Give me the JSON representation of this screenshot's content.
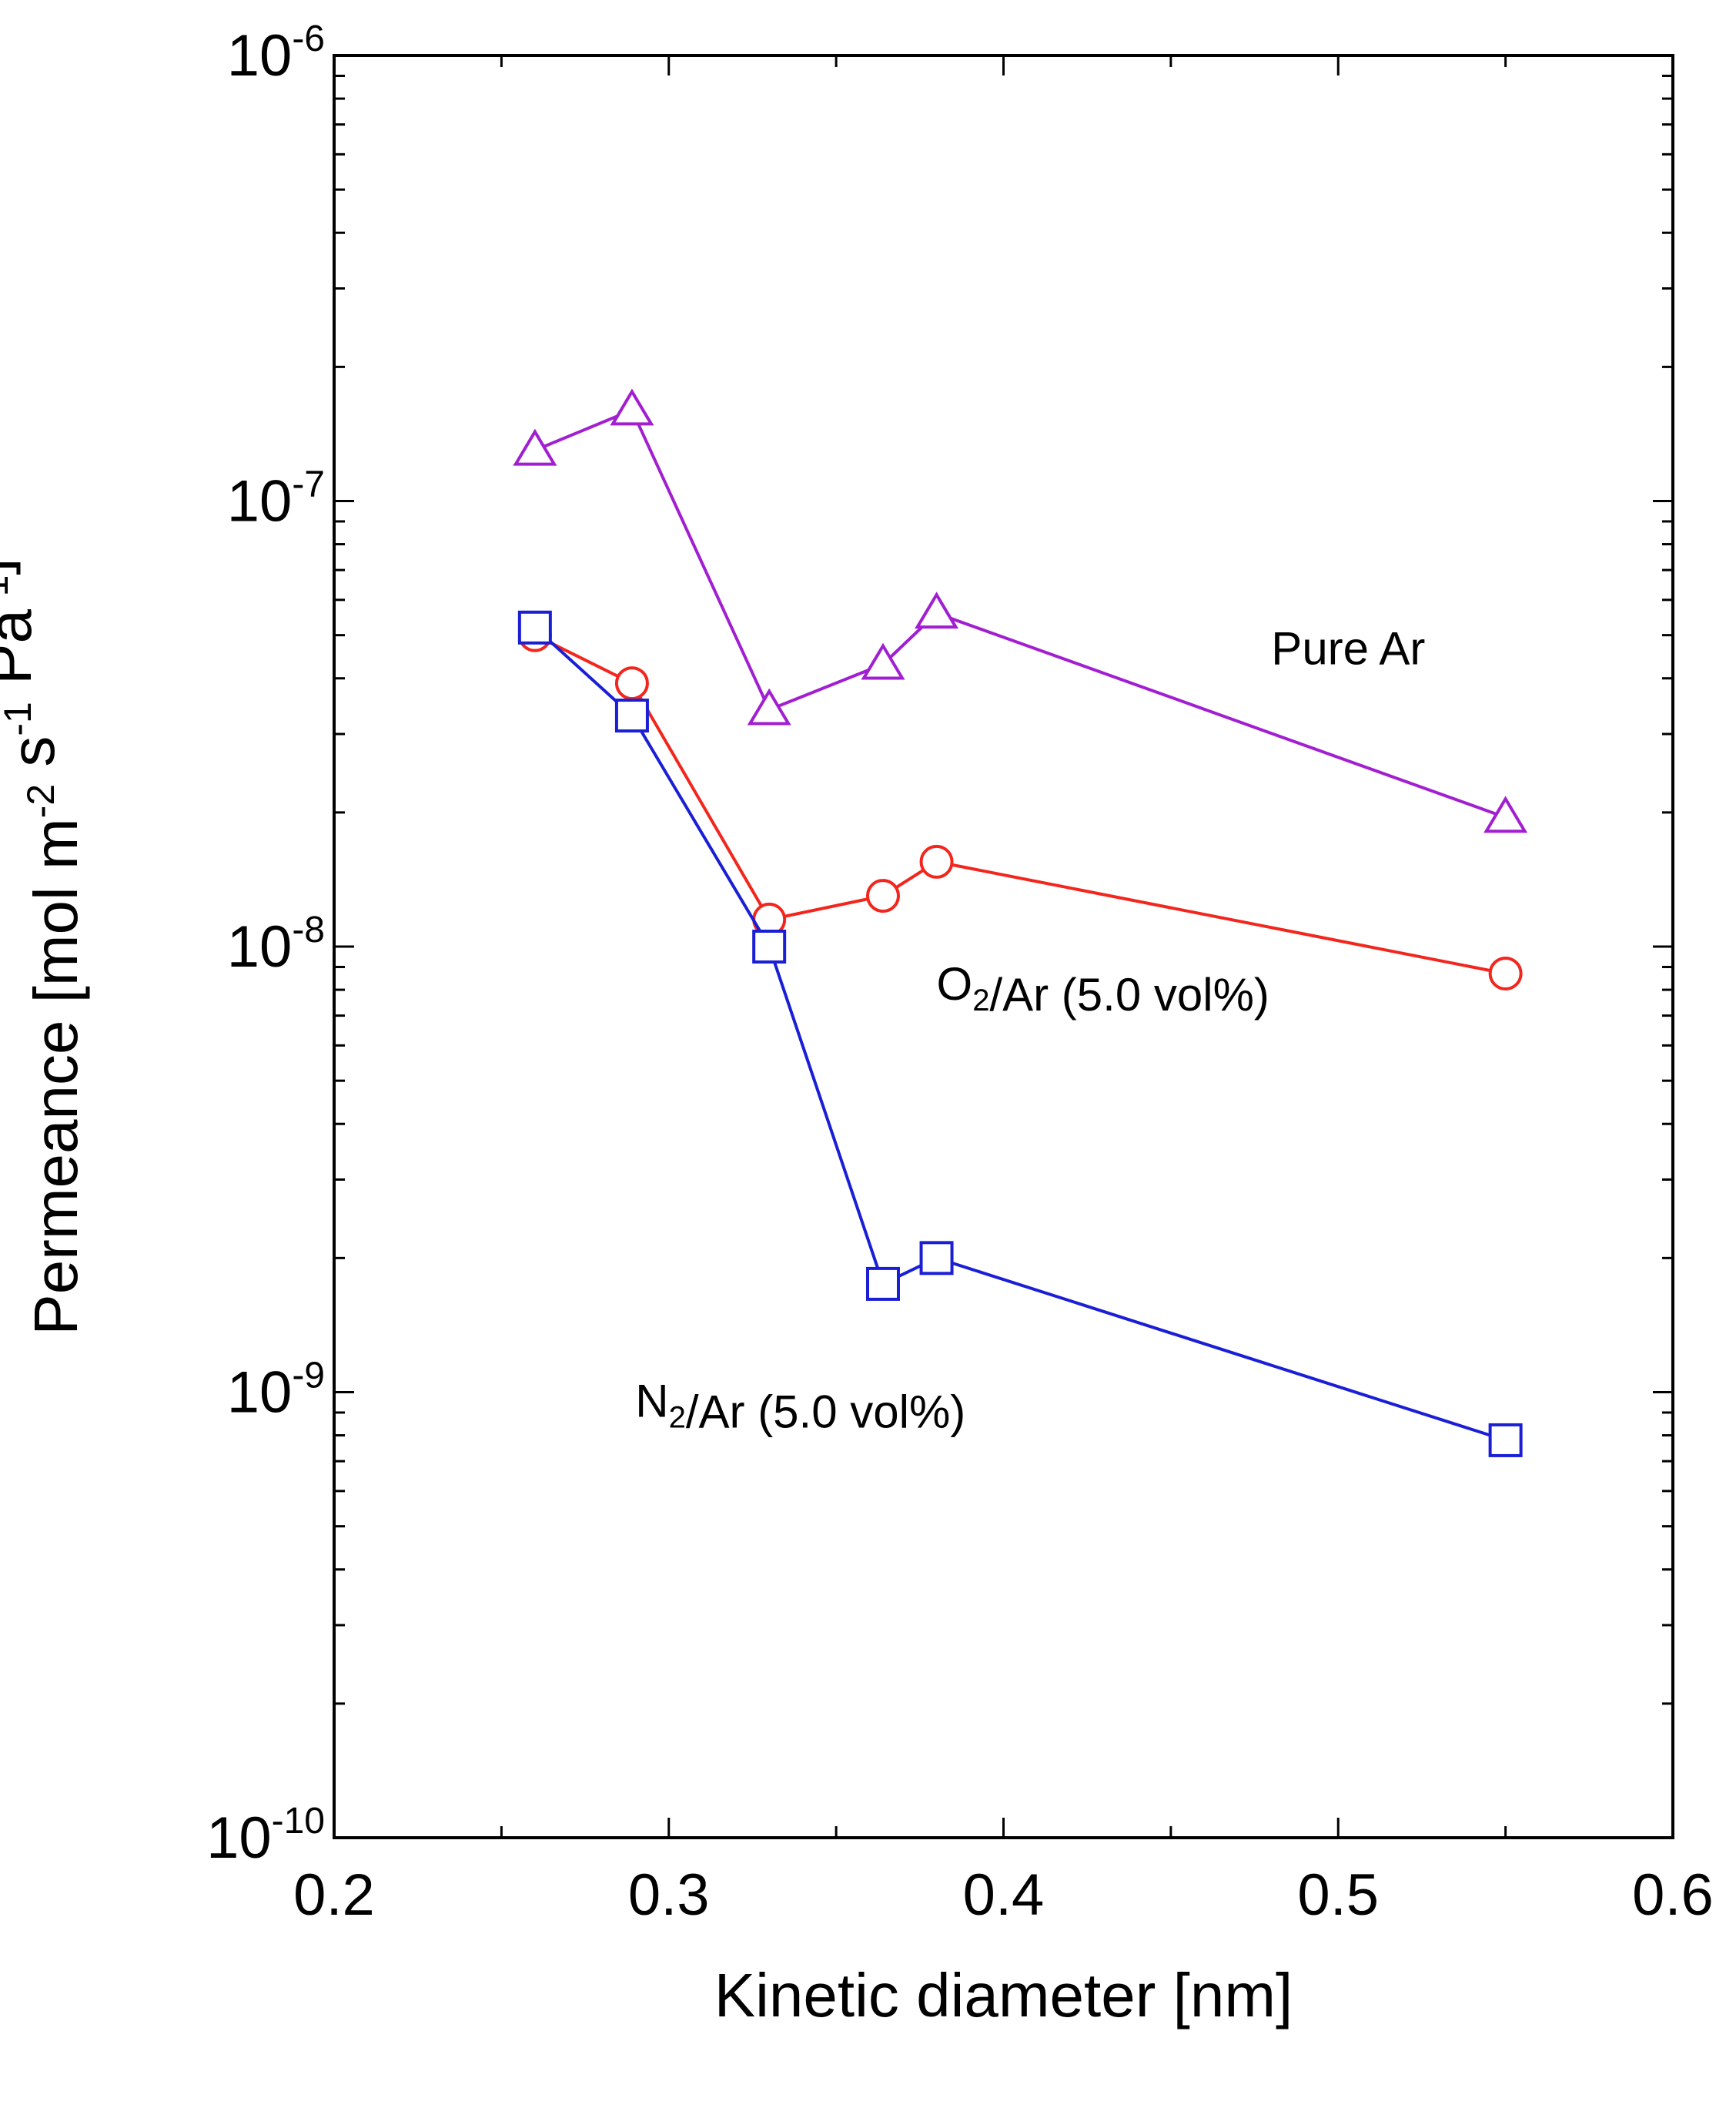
{
  "chart_data": {
    "type": "scatter",
    "title": "",
    "xlabel": "Kinetic diameter [nm]",
    "ylabel": {
      "parts": [
        {
          "text": "Permeance [mol m",
          "sup": "-2"
        },
        {
          "text": " s",
          "sup": "-1"
        },
        {
          "text": " Pa",
          "sup": "-1"
        },
        {
          "text": "]",
          "sup": ""
        }
      ]
    },
    "xlim": [
      0.2,
      0.6
    ],
    "ylim": [
      1e-10,
      1e-06
    ],
    "yscale": "log",
    "x_ticks": [
      "0.2",
      "0.3",
      "0.4",
      "0.5",
      "0.6"
    ],
    "y_ticks": [
      {
        "base": "10",
        "exp": "-6",
        "value": 1e-06
      },
      {
        "base": "10",
        "exp": "-7",
        "value": 1e-07
      },
      {
        "base": "10",
        "exp": "-8",
        "value": 1e-08
      },
      {
        "base": "10",
        "exp": "-9",
        "value": 1e-09
      },
      {
        "base": "10",
        "exp": "-10",
        "value": 1e-10
      }
    ],
    "grid": false,
    "series": [
      {
        "name": "Pure Ar",
        "label": {
          "parts": [
            {
              "text": "Pure Ar",
              "sub": ""
            }
          ]
        },
        "label_anchor": {
          "x": 0.48,
          "y": 4.3e-08
        },
        "color": "#a11fd1",
        "marker": "triangle",
        "x": [
          0.26,
          0.289,
          0.33,
          0.364,
          0.38,
          0.55
        ],
        "y": [
          1.3e-07,
          1.6e-07,
          3.4e-08,
          4.3e-08,
          5.6e-08,
          1.95e-08
        ]
      },
      {
        "name": "O2/Ar (5.0 vol%)",
        "label": {
          "parts": [
            {
              "text": "O",
              "sub": "2"
            },
            {
              "text": "/Ar (5.0 vol%)",
              "sub": ""
            }
          ]
        },
        "label_anchor": {
          "x": 0.38,
          "y": 7.6e-09
        },
        "color": "#f2261d",
        "marker": "circle",
        "x": [
          0.26,
          0.289,
          0.33,
          0.364,
          0.38,
          0.55
        ],
        "y": [
          5e-08,
          3.9e-08,
          1.15e-08,
          1.3e-08,
          1.55e-08,
          8.7e-09
        ]
      },
      {
        "name": "N2/Ar (5.0 vol%)",
        "label": {
          "parts": [
            {
              "text": "N",
              "sub": "2"
            },
            {
              "text": "/Ar (5.0 vol%)",
              "sub": ""
            }
          ]
        },
        "label_anchor": {
          "x": 0.29,
          "y": 8.8e-10
        },
        "color": "#1a1fd6",
        "marker": "square",
        "x": [
          0.26,
          0.289,
          0.33,
          0.364,
          0.38,
          0.55
        ],
        "y": [
          5.2e-08,
          3.3e-08,
          1e-08,
          1.75e-09,
          2e-09,
          7.8e-10
        ]
      }
    ]
  }
}
